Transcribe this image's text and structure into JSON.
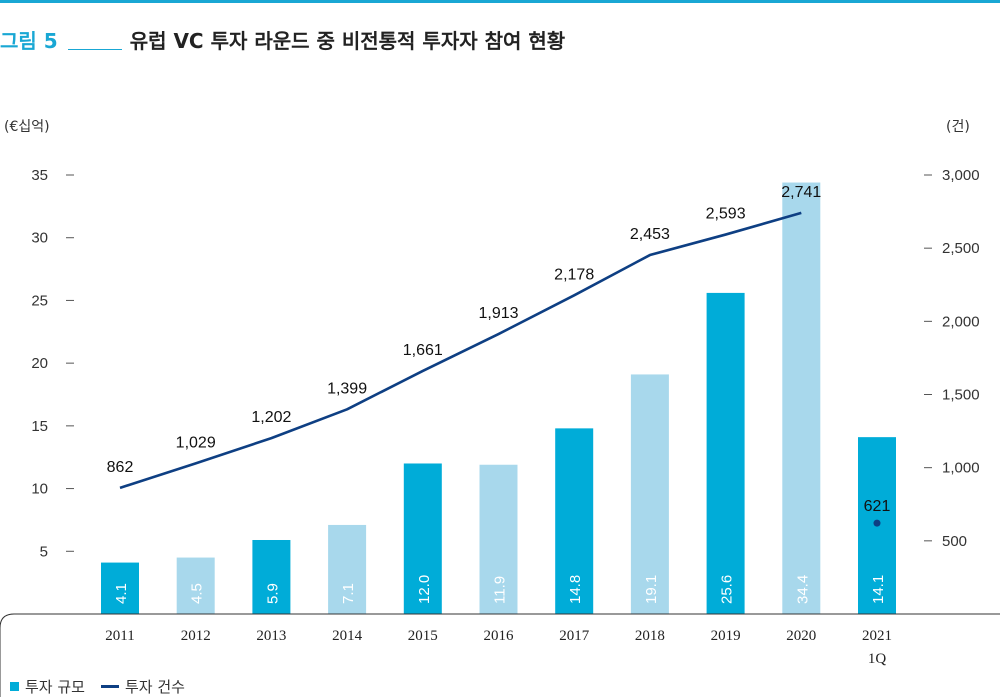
{
  "figure": {
    "label": "그림 5",
    "title": "유럽 VC 투자 라운드 중 비전통적 투자자 참여 현황"
  },
  "units": {
    "left": "(€십억)",
    "right": "(건)"
  },
  "legend": {
    "bars": "투자 규모",
    "line": "투자 건수"
  },
  "colors": {
    "accent": "#19a7d4",
    "bar_dark": "#00acd8",
    "bar_light": "#a8d8ec",
    "line": "#0e3f83"
  },
  "chart_data": {
    "type": "bar",
    "categories": [
      "2011",
      "2012",
      "2013",
      "2014",
      "2015",
      "2016",
      "2017",
      "2018",
      "2019",
      "2020",
      "2021\n1Q"
    ],
    "series": [
      {
        "name": "투자 규모",
        "axis": "left",
        "values": [
          4.1,
          4.5,
          5.9,
          7.1,
          12.0,
          11.9,
          14.8,
          19.1,
          25.6,
          34.4,
          14.1
        ],
        "labels": [
          "4.1",
          "4.5",
          "5.9",
          "7.1",
          "12.0",
          "11.9",
          "14.8",
          "19.1",
          "25.6",
          "34.4",
          "14.1"
        ],
        "shade": [
          "dark",
          "light",
          "dark",
          "light",
          "dark",
          "light",
          "dark",
          "light",
          "dark",
          "light",
          "dark"
        ]
      },
      {
        "name": "투자 건수",
        "axis": "right",
        "type": "line",
        "values": [
          862,
          1029,
          1202,
          1399,
          1661,
          1913,
          2178,
          2453,
          2593,
          2741,
          621
        ],
        "labels": [
          "862",
          "1,029",
          "1,202",
          "1,399",
          "1,661",
          "1,913",
          "2,178",
          "2,453",
          "2,593",
          "2,741",
          "621"
        ],
        "point_only_last": true
      }
    ],
    "yleft": {
      "ticks": [
        5,
        10,
        15,
        20,
        25,
        30,
        35
      ],
      "ylim": [
        0,
        35
      ]
    },
    "yright": {
      "ticks": [
        "500",
        "1,000",
        "1,500",
        "2,000",
        "2,500",
        "3,000"
      ],
      "tick_values": [
        500,
        1000,
        1500,
        2000,
        2500,
        3000
      ],
      "ylim": [
        0,
        3000
      ]
    }
  }
}
